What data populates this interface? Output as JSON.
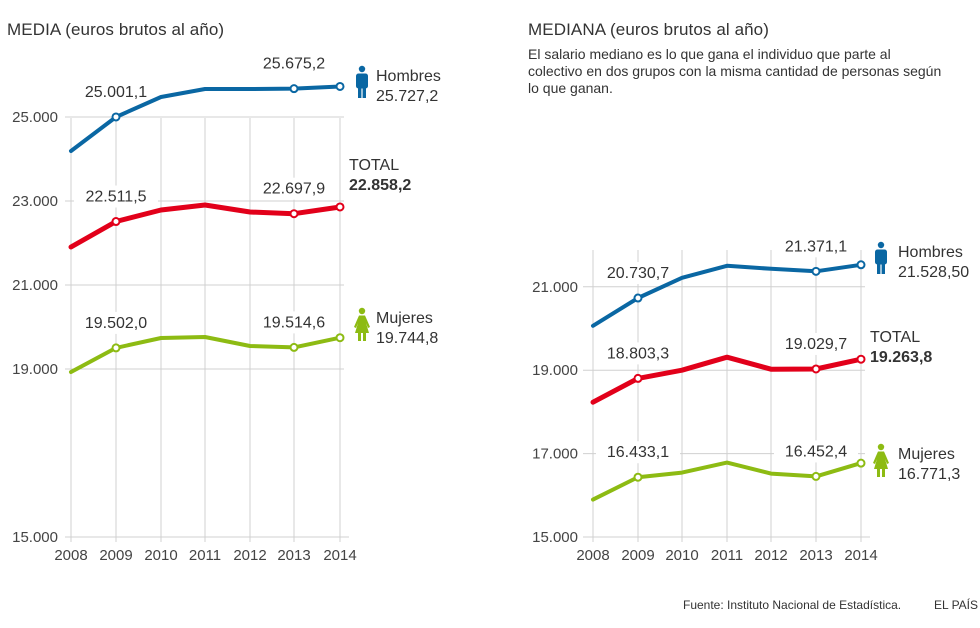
{
  "charts_header": {
    "left_title": "MEDIA (euros brutos al año)",
    "right_title": "MEDIANA (euros brutos al año)",
    "right_description": "El salario mediano es lo que gana el individuo que parte al colectivo en dos grupos con la misma cantidad de personas según lo que ganan."
  },
  "footer": {
    "source": "Fuente: Instituto Nacional de Estadística.",
    "brand": "EL PAÍS"
  },
  "colors": {
    "hombres": "#0a67a3",
    "total": "#e2001a",
    "mujeres": "#8dbb13",
    "grid": "#d0d0d0"
  },
  "chart_data": [
    {
      "type": "line",
      "title": "MEDIA (euros brutos al año)",
      "xlabel": "",
      "ylabel": "",
      "x": [
        "2008",
        "2009",
        "2010",
        "2011",
        "2012",
        "2013",
        "2014"
      ],
      "ylim": [
        15000,
        26000
      ],
      "yticks": [
        15000,
        19000,
        21000,
        23000,
        25000
      ],
      "ytick_labels": [
        "15.000",
        "19.000",
        "21.000",
        "23.000",
        "25.000"
      ],
      "grid": true,
      "series": [
        {
          "key": "hombres",
          "name": "Hombres",
          "values": [
            24190,
            25001.1,
            25476,
            25667,
            25667,
            25675.2,
            25727.2
          ],
          "annotations": [
            {
              "index": 1,
              "label": "25.001,1"
            },
            {
              "index": 5,
              "label": "25.675,2"
            }
          ],
          "end_label": "25.727,2",
          "icon": "male-figure-icon",
          "bold": false
        },
        {
          "key": "total",
          "name": "TOTAL",
          "values": [
            21905,
            22511.5,
            22786,
            22905,
            22738,
            22697.9,
            22858.2
          ],
          "annotations": [
            {
              "index": 1,
              "label": "22.511,5"
            },
            {
              "index": 5,
              "label": "22.697,9"
            }
          ],
          "end_label": "22.858,2",
          "icon": null,
          "bold": true
        },
        {
          "key": "mujeres",
          "name": "Mujeres",
          "values": [
            18929,
            19502.0,
            19738,
            19762,
            19548,
            19514.6,
            19744.8
          ],
          "annotations": [
            {
              "index": 1,
              "label": "19.502,0"
            },
            {
              "index": 5,
              "label": "19.514,6"
            }
          ],
          "end_label": "19.744,8",
          "icon": "female-figure-icon",
          "bold": false
        }
      ]
    },
    {
      "type": "line",
      "title": "MEDIANA (euros brutos al año)",
      "xlabel": "",
      "ylabel": "",
      "x": [
        "2008",
        "2009",
        "2010",
        "2011",
        "2012",
        "2013",
        "2014"
      ],
      "ylim": [
        15000,
        22000
      ],
      "yticks": [
        15000,
        17000,
        19000,
        21000
      ],
      "ytick_labels": [
        "15.000",
        "17.000",
        "19.000",
        "21.000"
      ],
      "grid": true,
      "series": [
        {
          "key": "hombres",
          "name": "Hombres",
          "values": [
            20065,
            20730.7,
            21216,
            21504,
            21432,
            21371.1,
            21528.5
          ],
          "annotations": [
            {
              "index": 1,
              "label": "20.730,7"
            },
            {
              "index": 5,
              "label": "21.371,1"
            }
          ],
          "end_label": "21.528,50",
          "icon": "male-figure-icon",
          "bold": false
        },
        {
          "key": "total",
          "name": "TOTAL",
          "values": [
            18233,
            18803.3,
            19000,
            19312,
            19024,
            19029.7,
            19263.8
          ],
          "annotations": [
            {
              "index": 1,
              "label": "18.803,3"
            },
            {
              "index": 5,
              "label": "19.029,7"
            }
          ],
          "end_label": "19.263,8",
          "icon": null,
          "bold": true
        },
        {
          "key": "mujeres",
          "name": "Mujeres",
          "values": [
            15897,
            16433.1,
            16544,
            16784,
            16520,
            16452.4,
            16771.3
          ],
          "annotations": [
            {
              "index": 1,
              "label": "16.433,1"
            },
            {
              "index": 5,
              "label": "16.452,4"
            }
          ],
          "end_label": "16.771,3",
          "icon": "female-figure-icon",
          "bold": false
        }
      ]
    }
  ]
}
